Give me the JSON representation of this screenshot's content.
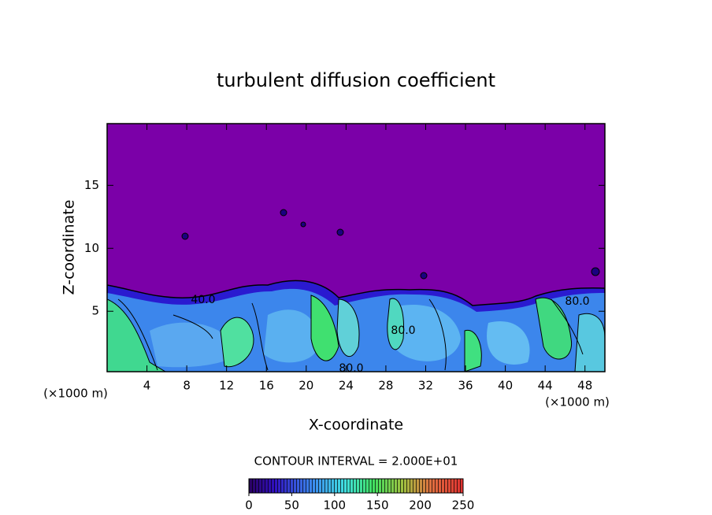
{
  "chart_data": {
    "type": "contour",
    "title": "turbulent diffusion coefficient",
    "x_label": "X-coordinate",
    "y_label": "Z-coordinate",
    "x_unit_label": "(×1000 m)",
    "xlim": [
      0,
      50
    ],
    "xticks": [
      4,
      8,
      12,
      16,
      20,
      24,
      28,
      32,
      36,
      40,
      44,
      48
    ],
    "ylim": [
      0.2,
      19.9
    ],
    "yticks": [
      5,
      10,
      15
    ],
    "contour_interval_label": "CONTOUR INTERVAL = 2.000E+01",
    "colorbar": {
      "lim": [
        0,
        250
      ],
      "ticks": [
        0,
        50,
        100,
        150,
        200,
        250
      ]
    },
    "annotations": [
      "40.0",
      "80.0",
      "80.0",
      "80.0"
    ]
  }
}
